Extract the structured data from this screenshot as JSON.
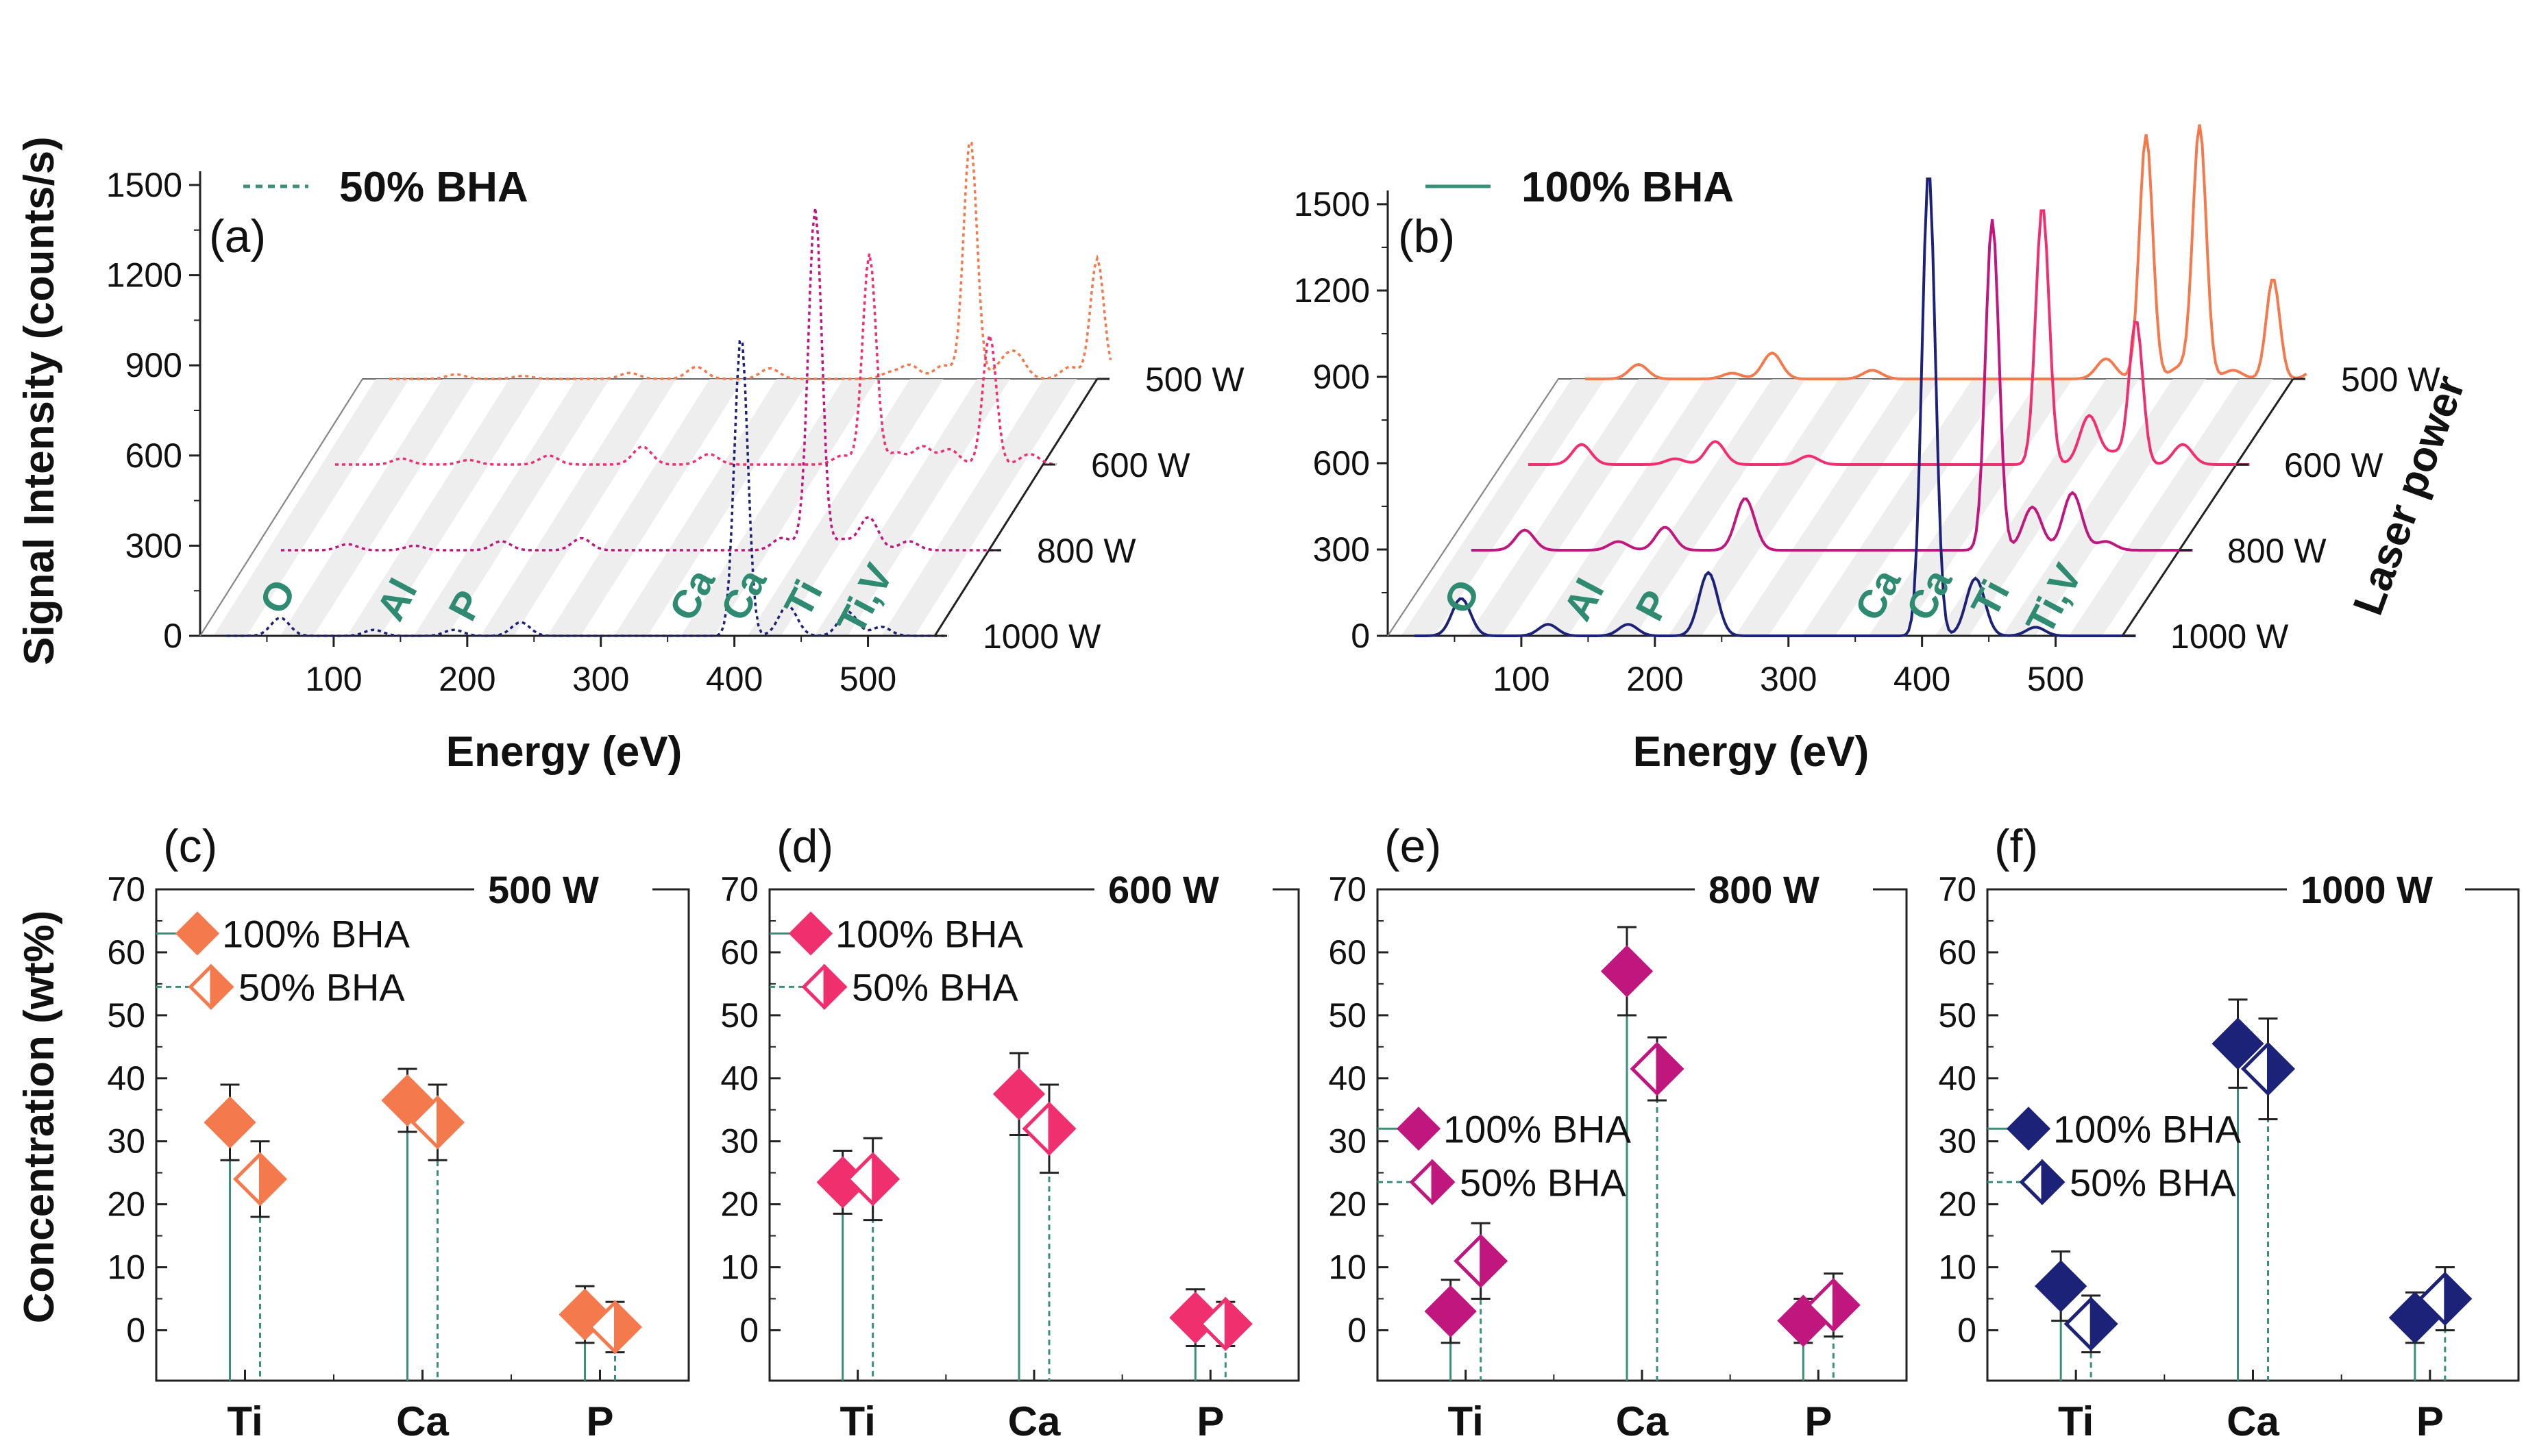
{
  "colors": {
    "teal": "#3a8f7a",
    "element_label": "#2f8a72",
    "500W": "#f47a4e",
    "600W": "#f0306e",
    "800W": "#c0177f",
    "1000W": "#1c2277"
  },
  "axes": {
    "signal_ylabel": "Signal Intensity (counts/s)",
    "energy_xlabel": "Energy (eV)",
    "conc_ylabel": "Concentration (wt%)",
    "laser_power": "Laser power"
  },
  "legends": {
    "bha50": "50% BHA",
    "bha100": "100% BHA"
  },
  "chart_data": [
    {
      "id": "a",
      "type": "line",
      "panel_label": "(a)",
      "legend": "50% BHA",
      "xlabel": "Energy (eV)",
      "ylabel": "Signal Intensity (counts/s)",
      "xlim": [
        0,
        550
      ],
      "ylim": [
        0,
        1500
      ],
      "xticks": [
        "100",
        "200",
        "300",
        "400",
        "500"
      ],
      "yticks": [
        "0",
        "300",
        "600",
        "900",
        "1200",
        "1500"
      ],
      "z_labels": [
        "500 W",
        "600 W",
        "800 W",
        "1000 W"
      ],
      "element_labels": [
        "O",
        "Al",
        "P",
        "Ca",
        "Ca",
        "Ti",
        "Ti,V"
      ],
      "series": [
        {
          "name": "500 W",
          "baseline": 0,
          "peaks": [
            [
              70,
              15
            ],
            [
              120,
              10
            ],
            [
              200,
              20
            ],
            [
              250,
              40
            ],
            [
              305,
              35
            ],
            [
              395,
              20
            ],
            [
              410,
              45
            ],
            [
              435,
              45
            ],
            [
              455,
              800
            ],
            [
              480,
              50
            ],
            [
              490,
              70
            ],
            [
              530,
              40
            ],
            [
              550,
              400
            ],
            [
              570,
              25
            ]
          ]
        },
        {
          "name": "600 W",
          "baseline": 0,
          "peaks": [
            [
              70,
              20
            ],
            [
              120,
              15
            ],
            [
              180,
              30
            ],
            [
              250,
              60
            ],
            [
              300,
              35
            ],
            [
              400,
              30
            ],
            [
              420,
              700
            ],
            [
              440,
              40
            ],
            [
              460,
              60
            ],
            [
              480,
              50
            ],
            [
              510,
              430
            ],
            [
              540,
              35
            ]
          ]
        },
        {
          "name": "800 W",
          "baseline": 0,
          "peaks": [
            [
              70,
              20
            ],
            [
              120,
              15
            ],
            [
              185,
              30
            ],
            [
              245,
              40
            ],
            [
              395,
              40
            ],
            [
              415,
              50
            ],
            [
              420,
              1100
            ],
            [
              440,
              35
            ],
            [
              460,
              110
            ],
            [
              490,
              30
            ]
          ]
        },
        {
          "name": "1000 W",
          "baseline": 0,
          "peaks": [
            [
              60,
              60
            ],
            [
              130,
              20
            ],
            [
              190,
              20
            ],
            [
              240,
              45
            ],
            [
              405,
              1000
            ],
            [
              440,
              100
            ],
            [
              485,
              80
            ],
            [
              510,
              30
            ]
          ]
        }
      ]
    },
    {
      "id": "b",
      "type": "line",
      "panel_label": "(b)",
      "legend": "100% BHA",
      "xlabel": "Energy (eV)",
      "ylabel": "Signal Intensity (counts/s)",
      "xlim": [
        0,
        550
      ],
      "ylim": [
        0,
        1500
      ],
      "xticks": [
        "100",
        "200",
        "300",
        "400",
        "500"
      ],
      "yticks": [
        "0",
        "300",
        "600",
        "900",
        "1200",
        "1500"
      ],
      "z_labels": [
        "500 W",
        "600 W",
        "800 W",
        "1000 W"
      ],
      "element_labels": [
        "O",
        "Al",
        "P",
        "Ca",
        "Ca",
        "Ti",
        "Ti,V"
      ],
      "series": [
        {
          "name": "500 W",
          "baseline": 0,
          "peaks": [
            [
              60,
              50
            ],
            [
              130,
              20
            ],
            [
              160,
              90
            ],
            [
              235,
              30
            ],
            [
              410,
              70
            ],
            [
              440,
              850
            ],
            [
              465,
              40
            ],
            [
              480,
              880
            ],
            [
              505,
              30
            ],
            [
              535,
              350
            ],
            [
              570,
              50
            ]
          ]
        },
        {
          "name": "600 W",
          "baseline": 0,
          "peaks": [
            [
              60,
              70
            ],
            [
              130,
              20
            ],
            [
              160,
              80
            ],
            [
              230,
              30
            ],
            [
              405,
              900
            ],
            [
              440,
              170
            ],
            [
              460,
              40
            ],
            [
              475,
              500
            ],
            [
              510,
              70
            ]
          ]
        },
        {
          "name": "800 W",
          "baseline": 0,
          "peaks": [
            [
              60,
              70
            ],
            [
              130,
              30
            ],
            [
              165,
              80
            ],
            [
              225,
              180
            ],
            [
              410,
              1150
            ],
            [
              440,
              150
            ],
            [
              470,
              200
            ],
            [
              495,
              30
            ]
          ]
        },
        {
          "name": "1000 W",
          "baseline": 0,
          "peaks": [
            [
              55,
              130
            ],
            [
              120,
              40
            ],
            [
              180,
              40
            ],
            [
              240,
              220
            ],
            [
              405,
              1620
            ],
            [
              440,
              200
            ],
            [
              485,
              30
            ]
          ]
        }
      ]
    },
    {
      "id": "c",
      "type": "scatter",
      "panel_label": "(c)",
      "power_label": "500 W",
      "color_key": "500W",
      "ylabel": "Concentration (wt%)",
      "ylim": [
        -8,
        70
      ],
      "yticks": [
        "0",
        "10",
        "20",
        "30",
        "40",
        "50",
        "60",
        "70"
      ],
      "categories": [
        "Ti",
        "Ca",
        "P"
      ],
      "legend_pos": "top-left",
      "series": [
        {
          "name": "100% BHA",
          "values": [
            33,
            36.5,
            2.5
          ],
          "errors": [
            6,
            5,
            4.5
          ]
        },
        {
          "name": "50% BHA",
          "values": [
            24,
            33,
            0.5
          ],
          "errors": [
            6,
            6,
            4
          ]
        }
      ]
    },
    {
      "id": "d",
      "type": "scatter",
      "panel_label": "(d)",
      "power_label": "600 W",
      "color_key": "600W",
      "ylabel": "Concentration (wt%)",
      "ylim": [
        -8,
        70
      ],
      "yticks": [
        "0",
        "10",
        "20",
        "30",
        "40",
        "50",
        "60",
        "70"
      ],
      "categories": [
        "Ti",
        "Ca",
        "P"
      ],
      "legend_pos": "top-left",
      "series": [
        {
          "name": "100% BHA",
          "values": [
            23.5,
            37.5,
            2
          ],
          "errors": [
            5,
            6.5,
            4.5
          ]
        },
        {
          "name": "50% BHA",
          "values": [
            24,
            32,
            1
          ],
          "errors": [
            6.5,
            7,
            3.5
          ]
        }
      ]
    },
    {
      "id": "e",
      "type": "scatter",
      "panel_label": "(e)",
      "power_label": "800 W",
      "color_key": "800W",
      "ylabel": "Concentration (wt%)",
      "ylim": [
        -8,
        70
      ],
      "yticks": [
        "0",
        "10",
        "20",
        "30",
        "40",
        "50",
        "60",
        "70"
      ],
      "categories": [
        "Ti",
        "Ca",
        "P"
      ],
      "legend_pos": "middle-left",
      "series": [
        {
          "name": "100% BHA",
          "values": [
            3,
            57,
            1.5
          ],
          "errors": [
            5,
            7,
            3.5
          ]
        },
        {
          "name": "50% BHA",
          "values": [
            11,
            41.5,
            4
          ],
          "errors": [
            6,
            5,
            5
          ]
        }
      ]
    },
    {
      "id": "f",
      "type": "scatter",
      "panel_label": "(f)",
      "power_label": "1000 W",
      "color_key": "1000W",
      "ylabel": "Concentration (wt%)",
      "ylim": [
        -8,
        70
      ],
      "yticks": [
        "0",
        "10",
        "20",
        "30",
        "40",
        "50",
        "60",
        "70"
      ],
      "categories": [
        "Ti",
        "Ca",
        "P"
      ],
      "legend_pos": "middle-left",
      "series": [
        {
          "name": "100% BHA",
          "values": [
            7,
            45.5,
            2
          ],
          "errors": [
            5.5,
            7,
            4
          ]
        },
        {
          "name": "50% BHA",
          "values": [
            1,
            41.5,
            5
          ],
          "errors": [
            4.5,
            8,
            5
          ]
        }
      ]
    }
  ]
}
